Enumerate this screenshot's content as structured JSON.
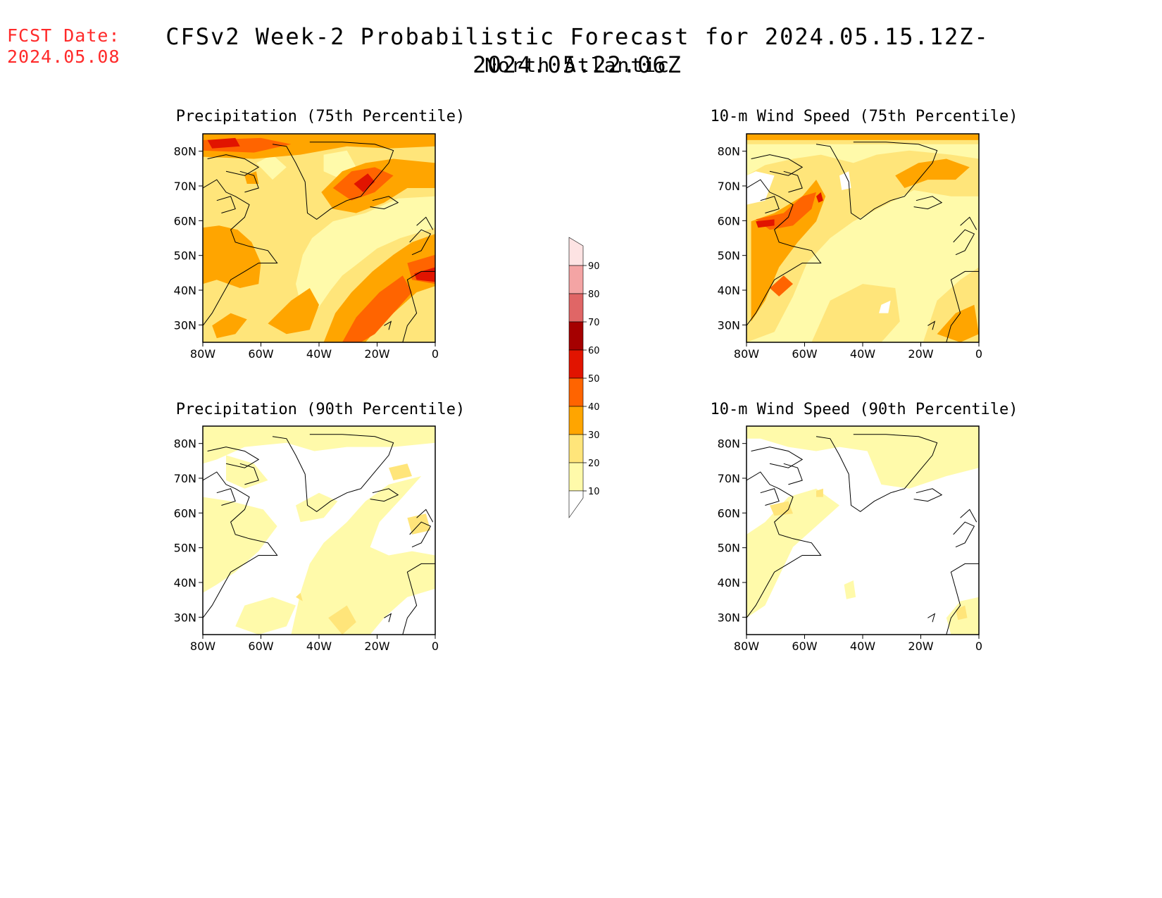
{
  "header": {
    "fcst_label": "FCST Date:",
    "fcst_date": "2024.05.08",
    "title": "CFSv2 Week-2 Probabilistic Forecast for 2024.05.15.12Z-2024.05.22.06Z",
    "subtitle": "North Atlantic"
  },
  "panels": [
    {
      "title": "Precipitation (75th Percentile)",
      "variable": "precipitation",
      "percentile": 75
    },
    {
      "title": "10-m Wind Speed (75th Percentile)",
      "variable": "wind",
      "percentile": 75
    },
    {
      "title": "Precipitation (90th Percentile)",
      "variable": "precipitation",
      "percentile": 90
    },
    {
      "title": "10-m Wind Speed (90th Percentile)",
      "variable": "wind",
      "percentile": 90
    }
  ],
  "axes": {
    "lat_labels": [
      "80N",
      "70N",
      "60N",
      "50N",
      "40N",
      "30N"
    ],
    "lon_labels": [
      "80W",
      "60W",
      "40W",
      "20W",
      "0"
    ],
    "lat_range": [
      25,
      85
    ],
    "lon_range": [
      -80,
      0
    ]
  },
  "colorbar": {
    "levels": [
      "90",
      "80",
      "70",
      "60",
      "50",
      "40",
      "30",
      "20",
      "10"
    ],
    "colors": {
      "10-20": "#fffaaa",
      "20-30": "#ffe57a",
      "30-40": "#ffa500",
      "40-50": "#ff6400",
      "50-60": "#e11400",
      "60-70": "#a50000",
      "70-80": "#e06666",
      "80-90": "#f4a4a4",
      "90+": "#fde3e3"
    }
  },
  "colors": {
    "fcst_text": "#ff2a2a"
  }
}
